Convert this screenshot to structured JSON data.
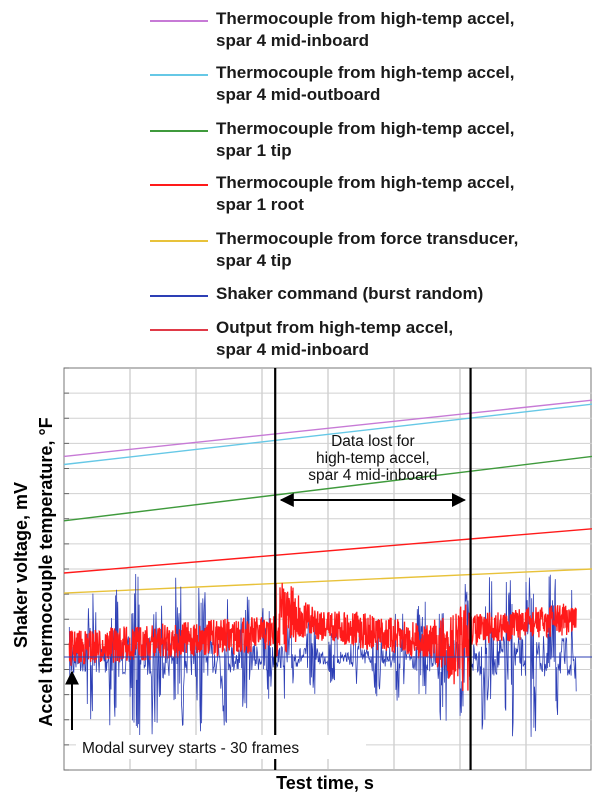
{
  "legend": {
    "items": [
      {
        "label": "Thermocouple from high-temp accel,\n  spar 4 mid-inboard",
        "color": "#c77ad6"
      },
      {
        "label": "Thermocouple from high-temp accel,\n  spar 4 mid-outboard",
        "color": "#66c8e6"
      },
      {
        "label": "Thermocouple from high-temp accel,\n  spar 1 tip",
        "color": "#3f9a3c"
      },
      {
        "label": "Thermocouple from high-temp accel,\n  spar 1 root",
        "color": "#ff1a1a"
      },
      {
        "label": "Thermocouple from force transducer,\n  spar 4 tip",
        "color": "#e8c23a"
      },
      {
        "label": "Shaker command (burst random)",
        "color": "#2d3fb5"
      },
      {
        "label": "Output from high-temp accel,\n  spar 4 mid-inboard",
        "color": "#e03a48"
      }
    ]
  },
  "chart_data": {
    "type": "line",
    "title": "",
    "xlabel": "Test time, s",
    "ylabel_outer": "Shaker voltage, mV",
    "ylabel_inner": "Accel thermocouple temperature, °F",
    "grid": true,
    "x_normalized": [
      0,
      1
    ],
    "series": [
      {
        "name": "Thermocouple from high-temp accel, spar 4 mid-inboard",
        "x": [
          0,
          1
        ],
        "y": [
          0.78,
          0.92
        ]
      },
      {
        "name": "Thermocouple from high-temp accel, spar 4 mid-outboard",
        "x": [
          0,
          1
        ],
        "y": [
          0.76,
          0.91
        ]
      },
      {
        "name": "Thermocouple from high-temp accel, spar 1 tip",
        "x": [
          0,
          1
        ],
        "y": [
          0.62,
          0.78
        ]
      },
      {
        "name": "Thermocouple from high-temp accel, spar 1 root",
        "x": [
          0,
          1
        ],
        "y": [
          0.49,
          0.6
        ]
      },
      {
        "name": "Thermocouple from force transducer, spar 4 tip",
        "x": [
          0,
          1
        ],
        "y": [
          0.44,
          0.5
        ]
      }
    ],
    "markers": [
      {
        "x": 0.4
      },
      {
        "x": 0.77
      }
    ],
    "annotations": [
      {
        "text": "Data lost for\nhigh-temp accel,\nspar 4 mid-inboard"
      },
      {
        "text": "Modal survey starts - 30 frames"
      }
    ]
  }
}
